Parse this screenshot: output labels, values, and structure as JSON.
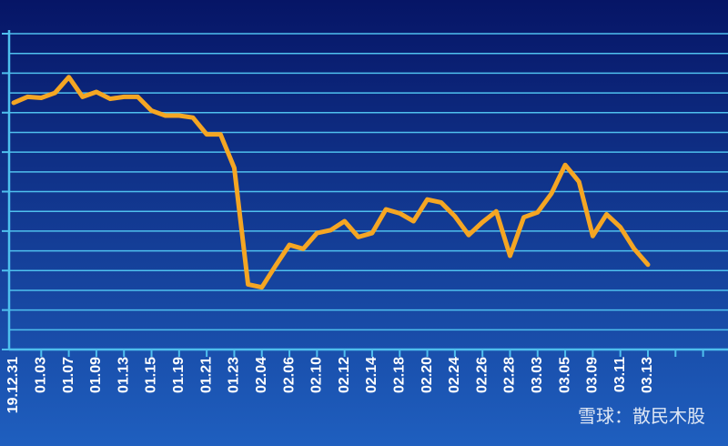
{
  "chart_data": {
    "type": "line",
    "categories": [
      "19.12.31",
      null,
      "01.03",
      null,
      "01.07",
      null,
      "01.09",
      null,
      "01.13",
      null,
      "01.15",
      null,
      "01.19",
      null,
      "01.21",
      null,
      "01.23",
      null,
      "02.04",
      null,
      "02.06",
      null,
      "02.10",
      null,
      "02.12",
      null,
      "02.14",
      null,
      "02.18",
      null,
      "02.20",
      null,
      "02.24",
      null,
      "02.26",
      null,
      "02.28",
      null,
      "03.03",
      null,
      "03.05",
      null,
      "03.09",
      null,
      "03.11",
      null,
      "03.13"
    ],
    "series": [
      {
        "color": "#f5a623",
        "values": [
          12.5,
          12.8,
          12.75,
          13.0,
          13.8,
          12.8,
          13.05,
          12.7,
          12.8,
          12.8,
          12.1,
          11.85,
          11.85,
          11.75,
          10.9,
          10.9,
          9.2,
          3.3,
          3.15,
          4.25,
          5.3,
          5.1,
          5.9,
          6.05,
          6.5,
          5.7,
          5.9,
          7.1,
          6.9,
          6.5,
          7.6,
          7.45,
          6.75,
          5.8,
          6.45,
          7.0,
          4.75,
          6.7,
          6.95,
          7.9,
          9.35,
          8.5,
          5.75,
          6.85,
          6.2,
          5.1,
          4.3
        ]
      }
    ],
    "ylim": [
      0,
      16
    ],
    "yticks": [
      0,
      1,
      2,
      3,
      4,
      5,
      6,
      7,
      8,
      9,
      10,
      11,
      12,
      13,
      14,
      15,
      16
    ],
    "grid": true,
    "watermark": "雪球：散民木股"
  }
}
